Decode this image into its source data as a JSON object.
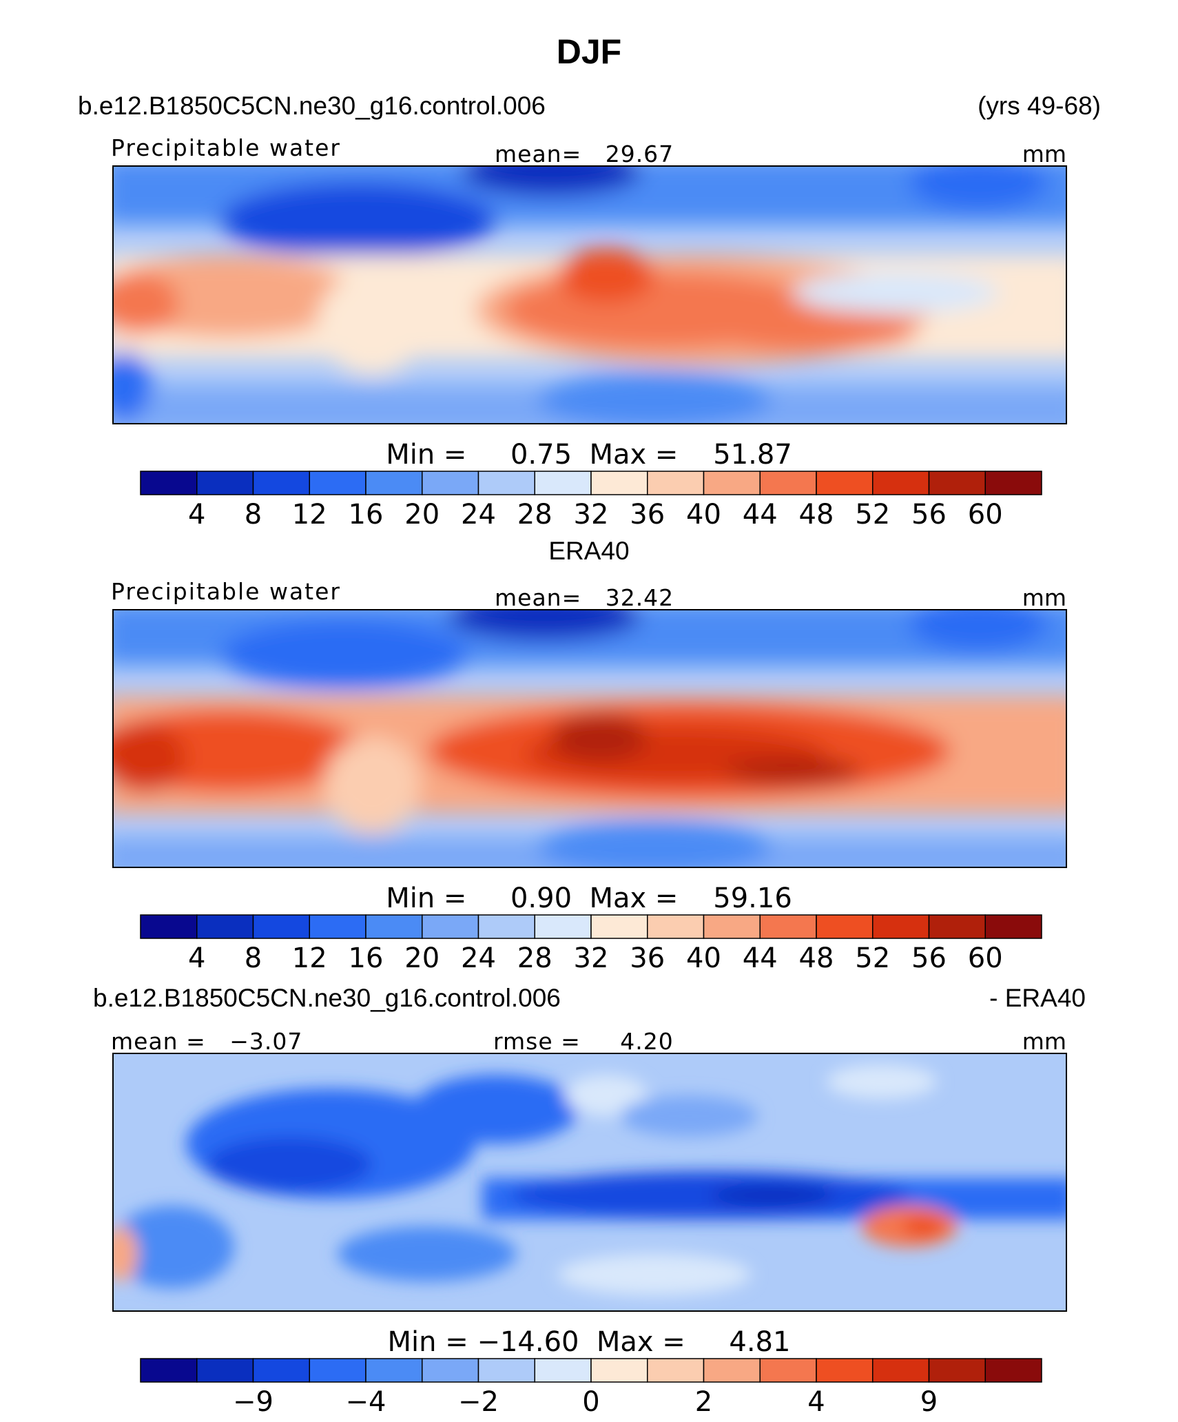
{
  "figure": {
    "title": "DJF",
    "case_name": "b.e12.B1850C5CN.ne30_g16.control.006",
    "years": "(yrs 49-68)"
  },
  "panels": [
    {
      "id": "model",
      "variable": "Precipitable water",
      "stat_text": "mean=   29.67",
      "units": "mm",
      "minmax_text": "Min =     0.75  Max =    51.87",
      "colorbar_labels": [
        "4",
        "8",
        "12",
        "16",
        "20",
        "24",
        "28",
        "32",
        "36",
        "40",
        "44",
        "48",
        "52",
        "56",
        "60"
      ]
    },
    {
      "id": "obs",
      "header_center": "ERA40",
      "variable": "Precipitable water",
      "stat_text": "mean=   32.42",
      "units": "mm",
      "minmax_text": "Min =     0.90  Max =    59.16",
      "colorbar_labels": [
        "4",
        "8",
        "12",
        "16",
        "20",
        "24",
        "28",
        "32",
        "36",
        "40",
        "44",
        "48",
        "52",
        "56",
        "60"
      ]
    },
    {
      "id": "diff",
      "header_left": "b.e12.B1850C5CN.ne30_g16.control.006",
      "header_right": "- ERA40",
      "mean_text": "mean =   −3.07",
      "rmse_text": "rmse =     4.20",
      "units": "mm",
      "minmax_text": "Min = −14.60  Max =     4.81",
      "colorbar_labels": [
        "−9",
        "−4",
        "−2",
        "0",
        "2",
        "4",
        "9"
      ]
    }
  ],
  "colorbar_colors": [
    "#08088f",
    "#0a2fbf",
    "#1448e0",
    "#2c6cf4",
    "#4b8bf5",
    "#7aa8f7",
    "#aecbf9",
    "#d9e8fb",
    "#fde9d6",
    "#fbcdb0",
    "#f8a884",
    "#f4774f",
    "#ee4f22",
    "#d6300f",
    "#b0200b",
    "#8a0b0b"
  ],
  "chart_data": [
    {
      "type": "heatmap",
      "title": "Precipitable water",
      "subtitle": "b.e12.B1850C5CN.ne30_g16.control.006 (yrs 49-68)",
      "units": "mm",
      "mean": 29.67,
      "min": 0.75,
      "max": 51.87,
      "contour_levels": [
        4,
        8,
        12,
        16,
        20,
        24,
        28,
        32,
        36,
        40,
        44,
        48,
        52,
        56,
        60
      ]
    },
    {
      "type": "heatmap",
      "title": "Precipitable water",
      "subtitle": "ERA40",
      "units": "mm",
      "mean": 32.42,
      "min": 0.9,
      "max": 59.16,
      "contour_levels": [
        4,
        8,
        12,
        16,
        20,
        24,
        28,
        32,
        36,
        40,
        44,
        48,
        52,
        56,
        60
      ]
    },
    {
      "type": "heatmap",
      "title": "b.e12.B1850C5CN.ne30_g16.control.006 - ERA40",
      "units": "mm",
      "mean": -3.07,
      "rmse": 4.2,
      "min": -14.6,
      "max": 4.81,
      "contour_levels": [
        -9,
        -4,
        -2,
        0,
        2,
        4,
        9
      ]
    }
  ]
}
